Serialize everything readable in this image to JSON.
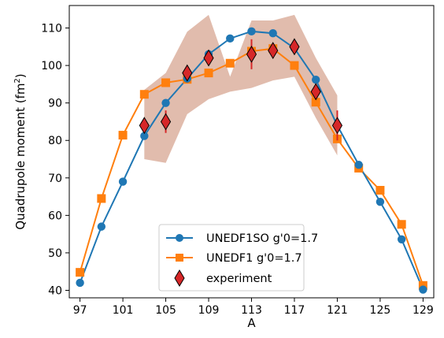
{
  "chart_data": {
    "type": "line",
    "xlabel": "A",
    "ylabel": "Quadrupole moment (fm",
    "ylabel_sup": "2",
    "ylabel_close": ")",
    "xlim": [
      96.0,
      130.0
    ],
    "ylim": [
      38.0,
      116.0
    ],
    "xticks": [
      97,
      101,
      105,
      109,
      113,
      117,
      121,
      125,
      129
    ],
    "yticks": [
      40,
      50,
      60,
      70,
      80,
      90,
      100,
      110
    ],
    "grid": false,
    "legend_placement": "bottom-center",
    "colors": {
      "unedf1so": "#1f77b4",
      "unedf1": "#ff7f0e",
      "experiment": "#d62728",
      "band": "#c8856a"
    },
    "series": [
      {
        "name": "UNEDF1SO g'0=1.7",
        "marker": "circle",
        "x": [
          97,
          99,
          101,
          103,
          105,
          107,
          109,
          111,
          113,
          115,
          117,
          119,
          121,
          123,
          125,
          127,
          129
        ],
        "y": [
          42.0,
          57.0,
          69.0,
          81.2,
          90.0,
          96.5,
          103.0,
          107.2,
          109.1,
          108.6,
          104.6,
          96.2,
          84.0,
          73.5,
          63.6,
          53.6,
          40.2
        ]
      },
      {
        "name": "UNEDF1 g'0=1.7",
        "marker": "square",
        "x": [
          97,
          99,
          101,
          103,
          105,
          107,
          109,
          111,
          113,
          115,
          117,
          119,
          121,
          123,
          125,
          127,
          129
        ],
        "y": [
          44.8,
          64.5,
          81.4,
          92.3,
          95.4,
          96.3,
          98.0,
          100.6,
          103.8,
          104.5,
          100.0,
          90.2,
          80.4,
          72.6,
          66.7,
          57.6,
          41.3
        ],
        "band": {
          "x": [
            103,
            105,
            107,
            109,
            111,
            113,
            115,
            117,
            119,
            121
          ],
          "lower": [
            75.0,
            74.0,
            87.0,
            91.0,
            93.0,
            94.0,
            96.0,
            97.0,
            86.0,
            76.0
          ],
          "upper": [
            93.5,
            98.0,
            109.0,
            113.5,
            97.0,
            112.0,
            112.0,
            113.5,
            102.0,
            92.0
          ]
        }
      },
      {
        "name": "experiment",
        "marker": "diamond",
        "x": [
          103,
          105,
          107,
          109,
          113,
          115,
          117,
          119,
          121
        ],
        "y": [
          84.0,
          85.0,
          98.0,
          102.0,
          103.0,
          104.0,
          105.0,
          93.0,
          84.0
        ],
        "yerr": [
          1.5,
          3.0,
          1.8,
          1.8,
          4.0,
          2.0,
          1.5,
          2.0,
          4.0
        ]
      }
    ]
  }
}
